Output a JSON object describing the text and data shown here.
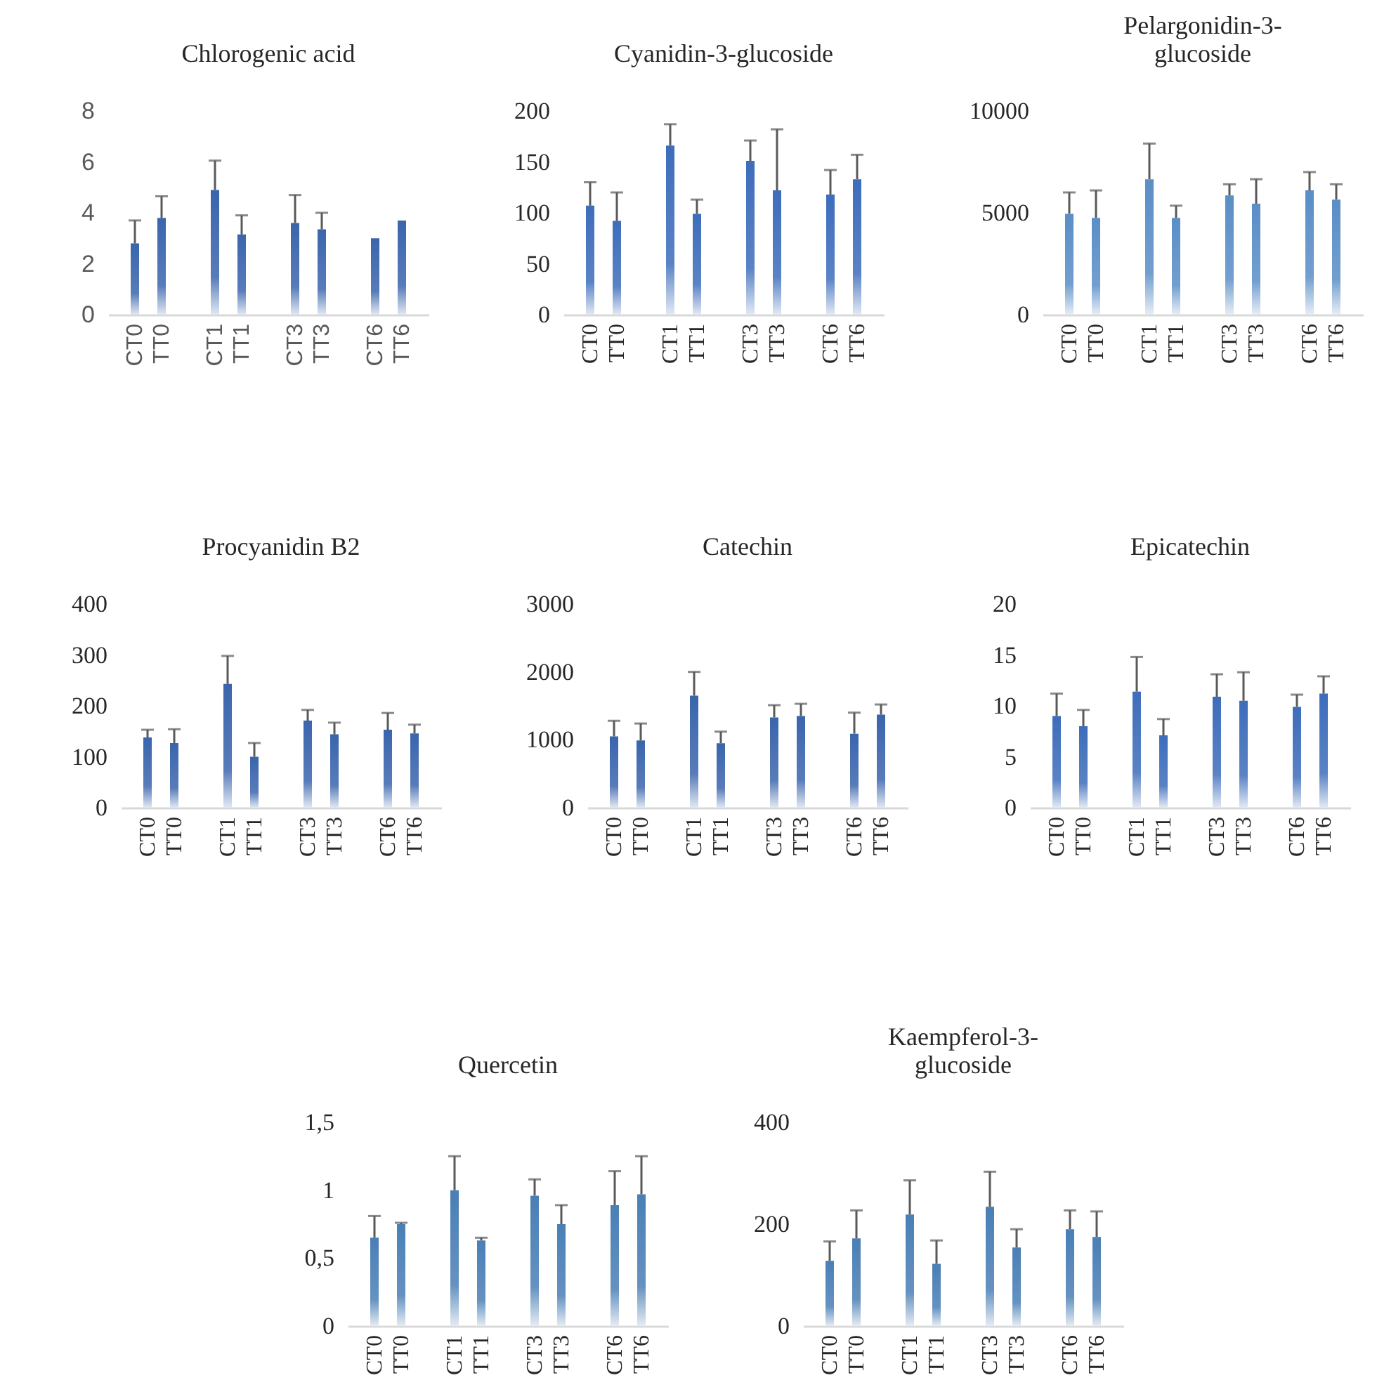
{
  "chart_data": [
    {
      "type": "bar",
      "title": "Chlorogenic acid",
      "categories": [
        "CT0",
        "TT0",
        null,
        "CT1",
        "TT1",
        null,
        "CT3",
        "TT3",
        null,
        "CT6",
        "TT6"
      ],
      "values": [
        2.8,
        3.8,
        null,
        4.9,
        3.15,
        null,
        3.6,
        3.35,
        null,
        3.0,
        3.7
      ],
      "errors": [
        [
          2.8,
          3.7
        ],
        [
          3.8,
          4.65
        ],
        null,
        [
          4.9,
          6.05
        ],
        [
          3.15,
          3.9
        ],
        null,
        [
          3.6,
          4.7
        ],
        [
          3.35,
          4.0
        ],
        null,
        null,
        null
      ],
      "color": "#3a65ad",
      "ylim": [
        0,
        8
      ],
      "yticks": [
        0,
        2,
        4,
        6,
        8
      ]
    },
    {
      "type": "bar",
      "title": "Cyanidin-3-glucoside",
      "categories": [
        "CT0",
        "TT0",
        null,
        "CT1",
        "TT1",
        null,
        "CT3",
        "TT3",
        null,
        "CT6",
        "TT6"
      ],
      "values": [
        107,
        92,
        null,
        166,
        99,
        null,
        151,
        122,
        null,
        118,
        133
      ],
      "errors": [
        [
          107,
          130
        ],
        [
          92,
          120
        ],
        null,
        [
          166,
          187
        ],
        [
          99,
          113
        ],
        null,
        [
          151,
          171
        ],
        [
          122,
          182
        ],
        null,
        [
          118,
          142
        ],
        [
          133,
          157
        ]
      ],
      "color": "#3d6dbb",
      "ylim": [
        0,
        200
      ],
      "yticks": [
        0,
        50,
        100,
        150,
        200
      ]
    },
    {
      "type": "bar",
      "title": "Pelargonidin-3-glucoside",
      "categories": [
        "CT0",
        "TT0",
        null,
        "CT1",
        "TT1",
        null,
        "CT3",
        "TT3",
        null,
        "CT6",
        "TT6"
      ],
      "values": [
        4950,
        4750,
        null,
        6650,
        4750,
        null,
        5850,
        5450,
        null,
        6100,
        5650
      ],
      "errors": [
        [
          4950,
          6000
        ],
        [
          4750,
          6100
        ],
        null,
        [
          6650,
          8400
        ],
        [
          4750,
          5350
        ],
        null,
        [
          5850,
          6400
        ],
        [
          5450,
          6650
        ],
        null,
        [
          6100,
          7000
        ],
        [
          5650,
          6400
        ]
      ],
      "color": "#5a8ec6",
      "ylim": [
        0,
        10000
      ],
      "yticks": [
        0,
        5000,
        10000
      ]
    },
    {
      "type": "bar",
      "title": "Procyanidin B2",
      "categories": [
        "CT0",
        "TT0",
        null,
        "CT1",
        "TT1",
        null,
        "CT3",
        "TT3",
        null,
        "CT6",
        "TT6"
      ],
      "values": [
        138,
        127,
        null,
        243,
        100,
        null,
        171,
        144,
        null,
        153,
        146
      ],
      "errors": [
        [
          138,
          153
        ],
        [
          127,
          154
        ],
        null,
        [
          243,
          298
        ],
        [
          100,
          127
        ],
        null,
        [
          171,
          192
        ],
        [
          144,
          167
        ],
        null,
        [
          153,
          186
        ],
        [
          146,
          163
        ]
      ],
      "color": "#3a65ad",
      "ylim": [
        0,
        400
      ],
      "yticks": [
        0,
        100,
        200,
        300,
        400
      ]
    },
    {
      "type": "bar",
      "title": "Catechin",
      "categories": [
        "CT0",
        "TT0",
        null,
        "CT1",
        "TT1",
        null,
        "CT3",
        "TT3",
        null,
        "CT6",
        "TT6"
      ],
      "values": [
        1050,
        990,
        null,
        1650,
        950,
        null,
        1330,
        1350,
        null,
        1090,
        1370
      ],
      "errors": [
        [
          1050,
          1280
        ],
        [
          990,
          1240
        ],
        null,
        [
          1650,
          2000
        ],
        [
          950,
          1120
        ],
        null,
        [
          1330,
          1510
        ],
        [
          1350,
          1530
        ],
        null,
        [
          1090,
          1400
        ],
        [
          1370,
          1520
        ]
      ],
      "color": "#3a65ad",
      "ylim": [
        0,
        3000
      ],
      "yticks": [
        0,
        1000,
        2000,
        3000
      ]
    },
    {
      "type": "bar",
      "title": "Epicatechin",
      "categories": [
        "CT0",
        "TT0",
        null,
        "CT1",
        "TT1",
        null,
        "CT3",
        "TT3",
        null,
        "CT6",
        "TT6"
      ],
      "values": [
        9.0,
        8.0,
        null,
        11.4,
        7.1,
        null,
        10.9,
        10.5,
        null,
        9.9,
        11.2
      ],
      "errors": [
        [
          9.0,
          11.2
        ],
        [
          8.0,
          9.6
        ],
        null,
        [
          11.4,
          14.8
        ],
        [
          7.1,
          8.7
        ],
        null,
        [
          10.9,
          13.1
        ],
        [
          10.5,
          13.3
        ],
        null,
        [
          9.9,
          11.1
        ],
        [
          11.2,
          12.9
        ]
      ],
      "color": "#3d6dbb",
      "ylim": [
        0,
        20
      ],
      "yticks": [
        0,
        5,
        10,
        15,
        20
      ]
    },
    {
      "type": "bar",
      "title": "Quercetin",
      "categories": [
        "CT0",
        "TT0",
        null,
        "CT1",
        "TT1",
        null,
        "CT3",
        "TT3",
        null,
        "CT6",
        "TT6"
      ],
      "values": [
        0.65,
        0.75,
        null,
        1.0,
        0.63,
        null,
        0.96,
        0.75,
        null,
        0.89,
        0.97
      ],
      "errors": [
        [
          0.65,
          0.81
        ],
        [
          0.75,
          0.76
        ],
        null,
        [
          1.0,
          1.25
        ],
        [
          0.63,
          0.65
        ],
        null,
        [
          0.96,
          1.08
        ],
        [
          0.75,
          0.89
        ],
        null,
        [
          0.89,
          1.14
        ],
        [
          0.97,
          1.25
        ]
      ],
      "color": "#4a7fb5",
      "ylim": [
        0,
        1.5
      ],
      "yticks": [
        0,
        {
          "value": 0.5,
          "label": "0,5"
        },
        1,
        {
          "value": 1.5,
          "label": "1,5"
        }
      ]
    },
    {
      "type": "bar",
      "title": "Kaempferol-3-glucoside",
      "categories": [
        "CT0",
        "TT0",
        null,
        "CT1",
        "TT1",
        null,
        "CT3",
        "TT3",
        null,
        "CT6",
        "TT6"
      ],
      "values": [
        128,
        172,
        null,
        219,
        122,
        null,
        234,
        154,
        null,
        190,
        175
      ],
      "errors": [
        [
          128,
          166
        ],
        [
          172,
          227
        ],
        null,
        [
          219,
          286
        ],
        [
          122,
          168
        ],
        null,
        [
          234,
          303
        ],
        [
          154,
          190
        ],
        null,
        [
          190,
          227
        ],
        [
          175,
          225
        ]
      ],
      "color": "#4a7fb5",
      "ylim": [
        0,
        400
      ],
      "yticks": [
        0,
        200,
        400
      ]
    }
  ]
}
